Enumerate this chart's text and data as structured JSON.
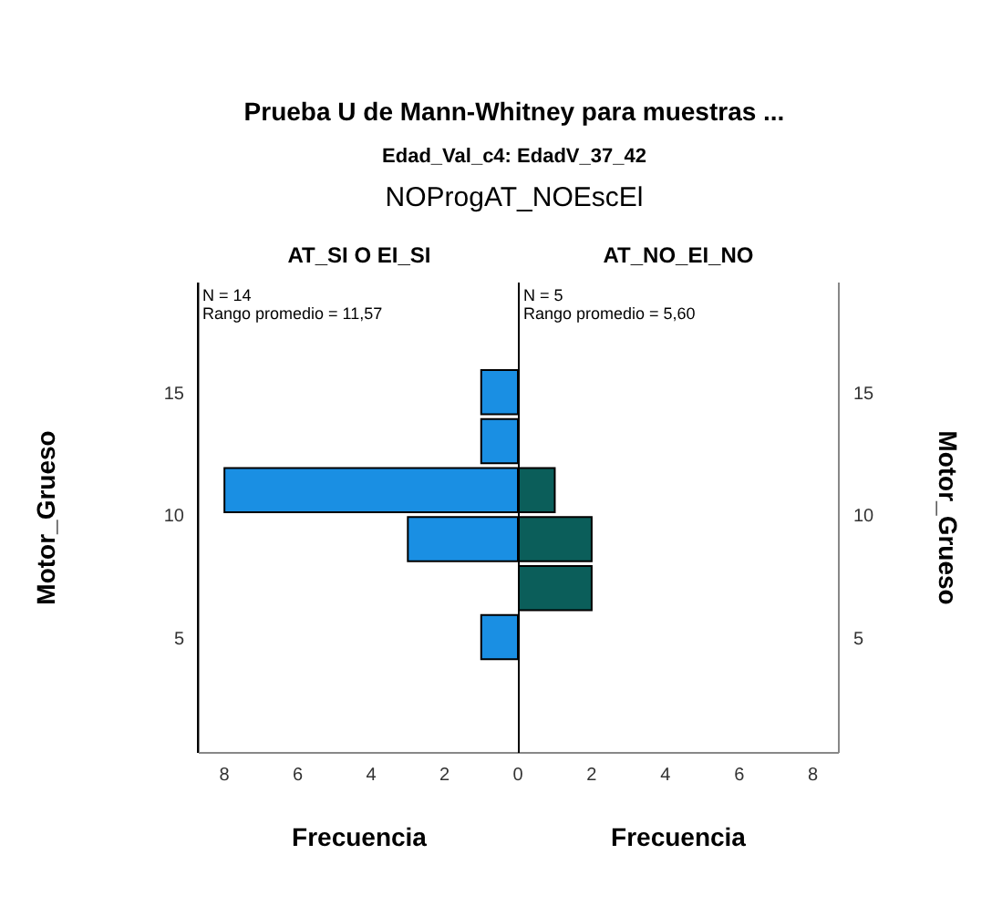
{
  "chart_data": [
    {
      "type": "histogram",
      "orientation": "horizontal",
      "annotations": [
        "Prueba U de Mann-Whitney para muestras ...",
        "Edad_Val_c4: EdadV_37_42",
        "NOProgAT_NOEscEl",
        "N = 14",
        "Rango promedio = 11,57"
      ],
      "title": "AT_SI O EI_SI",
      "xlabel": "Frecuencia",
      "ylabel": "Motor_Grueso",
      "bins": [
        4,
        6,
        8,
        10,
        12,
        14,
        16
      ],
      "values": [
        1,
        0,
        3,
        8,
        1,
        1
      ],
      "color": "#1a8fe3",
      "xlim": [
        8.7,
        0
      ],
      "xticks": [
        8,
        6,
        4,
        2,
        0
      ],
      "ylim": [
        0.3,
        19.5
      ],
      "yticks": [
        5,
        10,
        15
      ]
    },
    {
      "type": "histogram",
      "orientation": "horizontal",
      "annotations": [
        "N = 5",
        "Rango promedio = 5,60"
      ],
      "title": "AT_NO_EI_NO",
      "xlabel": "Frecuencia",
      "ylabel": "Motor_Grueso",
      "bins": [
        4,
        6,
        8,
        10,
        12,
        14,
        16
      ],
      "values": [
        0,
        2,
        2,
        1,
        0,
        0
      ],
      "color": "#0b5e5a",
      "xlim": [
        0,
        8.7
      ],
      "xticks": [
        2,
        4,
        6,
        8
      ],
      "ylim": [
        0.3,
        19.5
      ],
      "yticks": [
        5,
        10,
        15
      ]
    }
  ]
}
